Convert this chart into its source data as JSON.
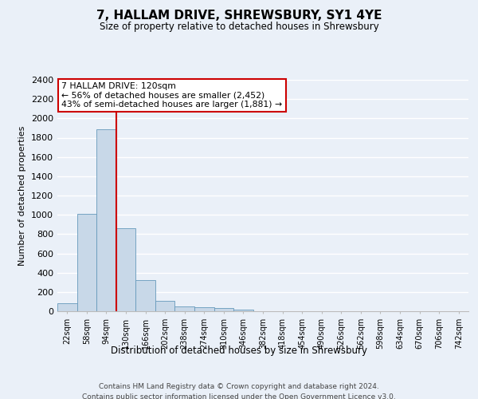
{
  "title": "7, HALLAM DRIVE, SHREWSBURY, SY1 4YE",
  "subtitle": "Size of property relative to detached houses in Shrewsbury",
  "xlabel": "Distribution of detached houses by size in Shrewsbury",
  "ylabel": "Number of detached properties",
  "footer_line1": "Contains HM Land Registry data © Crown copyright and database right 2024.",
  "footer_line2": "Contains public sector information licensed under the Open Government Licence v3.0.",
  "bin_labels": [
    "22sqm",
    "58sqm",
    "94sqm",
    "130sqm",
    "166sqm",
    "202sqm",
    "238sqm",
    "274sqm",
    "310sqm",
    "346sqm",
    "382sqm",
    "418sqm",
    "454sqm",
    "490sqm",
    "526sqm",
    "562sqm",
    "598sqm",
    "634sqm",
    "670sqm",
    "706sqm",
    "742sqm"
  ],
  "bar_values": [
    85,
    1010,
    1890,
    860,
    320,
    110,
    50,
    45,
    30,
    20,
    0,
    0,
    0,
    0,
    0,
    0,
    0,
    0,
    0,
    0,
    0
  ],
  "bar_color": "#c8d8e8",
  "bar_edge_color": "#6699bb",
  "ylim": [
    0,
    2400
  ],
  "yticks": [
    0,
    200,
    400,
    600,
    800,
    1000,
    1200,
    1400,
    1600,
    1800,
    2000,
    2200,
    2400
  ],
  "annotation_title": "7 HALLAM DRIVE: 120sqm",
  "annotation_line1": "← 56% of detached houses are smaller (2,452)",
  "annotation_line2": "43% of semi-detached houses are larger (1,881) →",
  "vline_color": "#cc0000",
  "annotation_box_color": "#ffffff",
  "annotation_box_edge": "#cc0000",
  "bg_color": "#eaf0f8",
  "grid_color": "#ffffff",
  "bar_width": 1.0
}
